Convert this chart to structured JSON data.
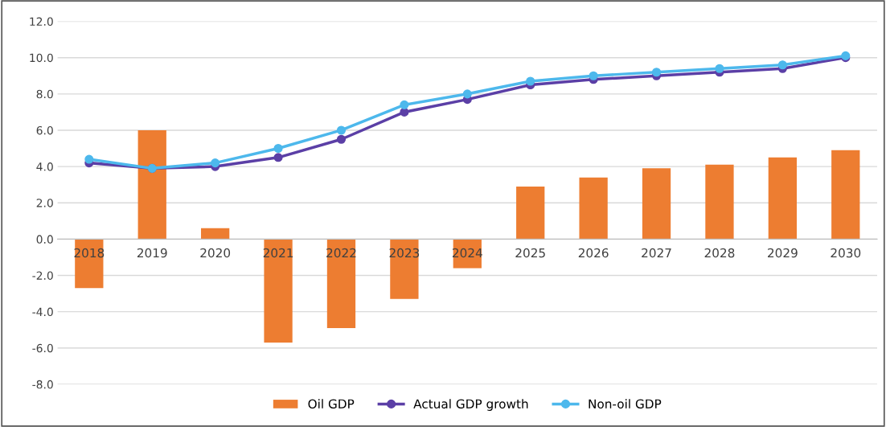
{
  "chart_data": {
    "type": "bar",
    "categories": [
      "2018",
      "2019",
      "2020",
      "2021",
      "2022",
      "2023",
      "2024",
      "2025",
      "2026",
      "2027",
      "2028",
      "2029",
      "2030"
    ],
    "series": [
      {
        "name": "Oil GDP",
        "color": "#ed7d31",
        "values": [
          -2.7,
          6.0,
          0.6,
          -5.7,
          -4.9,
          -3.3,
          -1.6,
          2.9,
          3.4,
          3.9,
          4.1,
          4.5,
          4.9
        ]
      },
      {
        "name": "Actual GDP growth",
        "type": "line",
        "color": "#5b3fa6",
        "marker": "circle",
        "values": [
          4.2,
          3.9,
          4.0,
          4.5,
          5.5,
          7.0,
          7.7,
          8.5,
          8.8,
          9.0,
          9.2,
          9.4,
          10.0
        ]
      },
      {
        "name": "Non-oil GDP",
        "type": "line",
        "color": "#4db8ec",
        "marker": "circle",
        "values": [
          4.4,
          3.9,
          4.2,
          5.0,
          6.0,
          7.4,
          8.0,
          8.7,
          9.0,
          9.2,
          9.4,
          9.6,
          10.1
        ]
      }
    ],
    "ylim": [
      -8,
      12
    ],
    "yticks": [
      {
        "value": -8,
        "label": "-8.0"
      },
      {
        "value": -6,
        "label": "-6.0"
      },
      {
        "value": -4,
        "label": "-4.0"
      },
      {
        "value": -2,
        "label": "-2.0"
      },
      {
        "value": 0,
        "label": "0.0"
      },
      {
        "value": 2,
        "label": "2.0"
      },
      {
        "value": 4,
        "label": "4.0"
      },
      {
        "value": 6,
        "label": "6.0"
      },
      {
        "value": 8,
        "label": "8.0"
      },
      {
        "value": 10,
        "label": "10.0"
      },
      {
        "value": 12,
        "label": "12.0"
      }
    ],
    "grid": "y",
    "legend": "bottom"
  }
}
